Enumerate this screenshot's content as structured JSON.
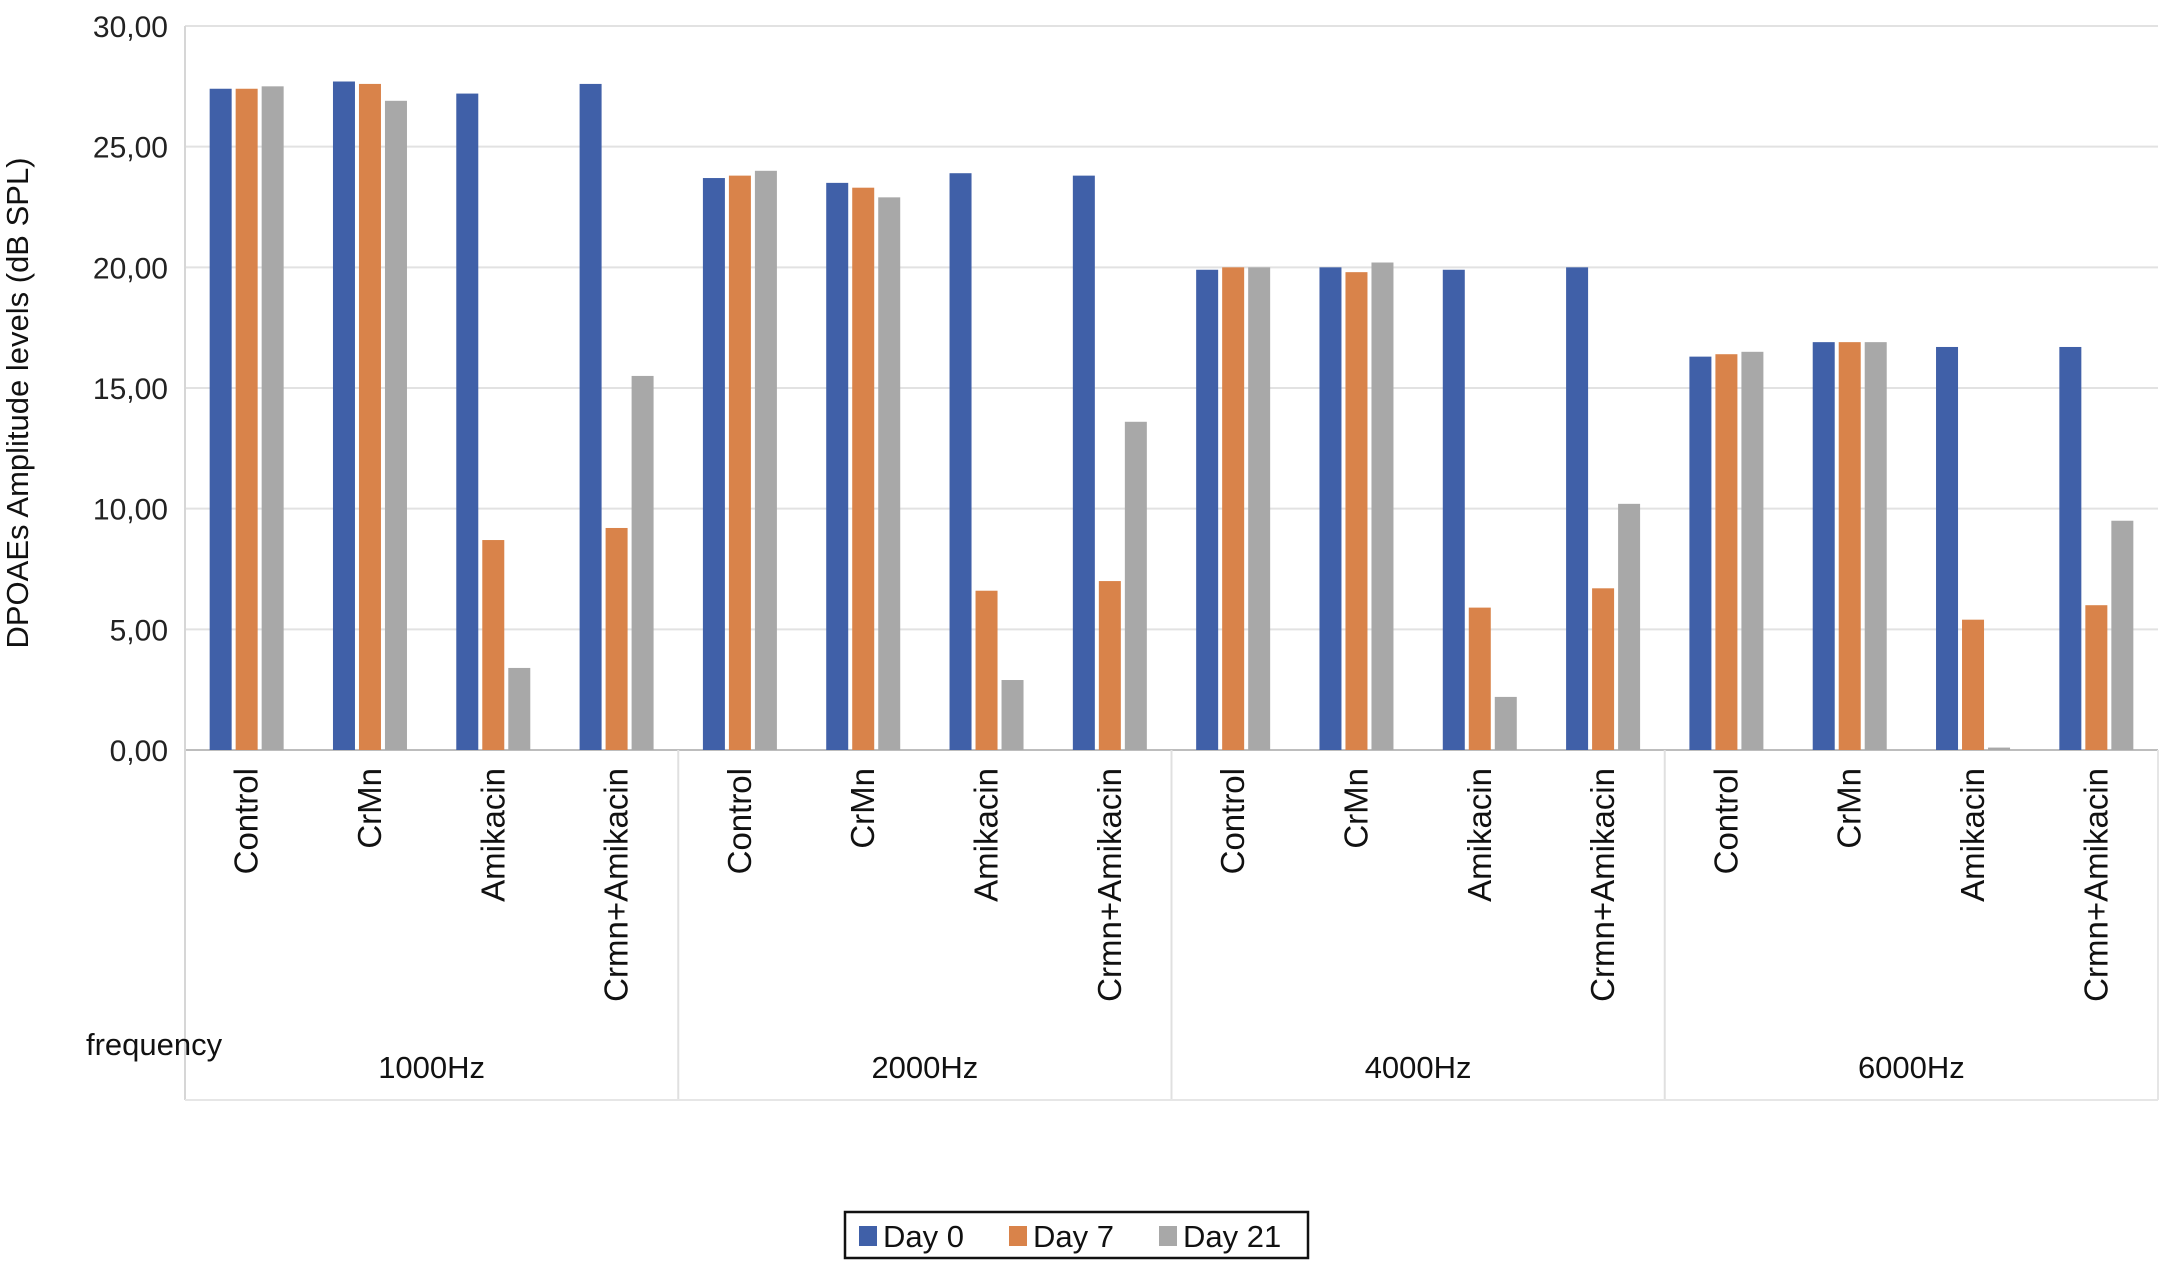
{
  "chart_data": {
    "type": "bar",
    "ylabel": "DPOAEs Amplitude  levels (dB SPL)",
    "xlabel": "frequency",
    "ylim": [
      0,
      30
    ],
    "yticks": [
      "0,00",
      "5,00",
      "10,00",
      "15,00",
      "20,00",
      "25,00",
      "30,00"
    ],
    "grid": true,
    "legend_position": "bottom-center",
    "groups": [
      {
        "name": "1000Hz",
        "categories": [
          "Control",
          "CrMn",
          "Amikacin",
          "Crmn+Amikacin"
        ]
      },
      {
        "name": "2000Hz",
        "categories": [
          "Control",
          "CrMn",
          "Amikacin",
          "Crmn+Amikacin"
        ]
      },
      {
        "name": "4000Hz",
        "categories": [
          "Control",
          "CrMn",
          "Amikacin",
          "Crmn+Amikacin"
        ]
      },
      {
        "name": "6000Hz",
        "categories": [
          "Control",
          "CrMn",
          "Amikacin",
          "Crmn+Amikacin"
        ]
      }
    ],
    "series": [
      {
        "name": "Day 0",
        "color": "#4060A8",
        "values": [
          27.4,
          27.7,
          27.2,
          27.6,
          23.7,
          23.5,
          23.9,
          23.8,
          19.9,
          20.0,
          19.9,
          20.0,
          16.3,
          16.9,
          16.7,
          16.7
        ]
      },
      {
        "name": "Day 7",
        "color": "#D9834A",
        "values": [
          27.4,
          27.6,
          8.7,
          9.2,
          23.8,
          23.3,
          6.6,
          7.0,
          20.0,
          19.8,
          5.9,
          6.7,
          16.4,
          16.9,
          5.4,
          6.0
        ]
      },
      {
        "name": "Day 21",
        "color": "#A8A8A8",
        "values": [
          27.5,
          26.9,
          3.4,
          15.5,
          24.0,
          22.9,
          2.9,
          13.6,
          20.0,
          20.2,
          2.2,
          10.2,
          16.5,
          16.9,
          0.1,
          9.5
        ]
      }
    ]
  }
}
